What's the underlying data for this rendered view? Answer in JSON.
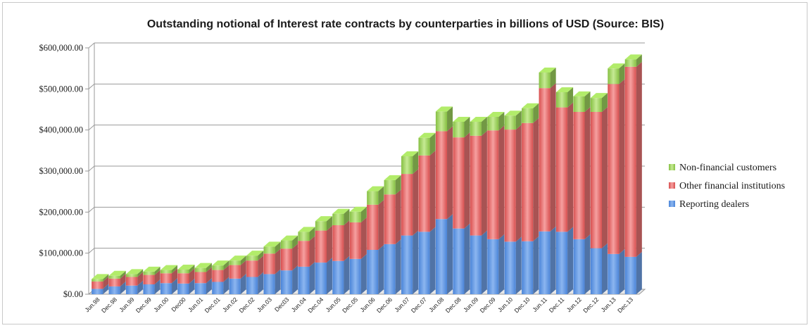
{
  "chart_data": {
    "type": "bar",
    "stacked": true,
    "three_d": true,
    "title": "Outstanding notional of Interest rate contracts by counterparties in billions of USD (Source: BIS)",
    "xlabel": "",
    "ylabel": "",
    "ylim": [
      0,
      600000
    ],
    "yticks": [
      0,
      100000,
      200000,
      300000,
      400000,
      500000,
      600000
    ],
    "ytick_labels": [
      "$0.00",
      "$100,000.00",
      "$200,000.00",
      "$300,000.00",
      "$400,000.00",
      "$500,000.00",
      "$600,000.00"
    ],
    "grid": true,
    "legend_position": "right",
    "categories": [
      "Jun.98",
      "Dec.98",
      "Jun.99",
      "Dec.99",
      "Jun.00",
      "Dec00",
      "Jun.01",
      "Dec.01",
      "Jun.02",
      "Dec.02",
      "Jun.03",
      "Dec03",
      "Jun.04",
      "Dec.04",
      "Jun.05",
      "Dec.05",
      "Jun.06",
      "Dec.06",
      "Jun.07",
      "Dec.07",
      "Jun.08",
      "Dec.08",
      "Jun.09",
      "Dec.09",
      "Jun.10",
      "Dec.10",
      "Jun.11",
      "Dec.11",
      "Jun.12",
      "Dec.12",
      "Jun.13",
      "Dec.13"
    ],
    "series": [
      {
        "name": "Reporting dealers",
        "color": "#6fa0e6",
        "values": [
          13000,
          19000,
          21000,
          24000,
          27000,
          26000,
          27000,
          30000,
          38000,
          42000,
          49000,
          58000,
          67000,
          77000,
          81000,
          86000,
          108000,
          122000,
          143000,
          152000,
          183000,
          160000,
          143000,
          134000,
          128000,
          129000,
          153000,
          152000,
          134000,
          112000,
          98000,
          91000
        ]
      },
      {
        "name": "Other financial institutions",
        "color": "#e97373",
        "values": [
          18000,
          19000,
          21000,
          23000,
          24000,
          25000,
          27000,
          29000,
          33000,
          40000,
          50000,
          53000,
          63000,
          78000,
          87000,
          89000,
          110000,
          121000,
          150000,
          186000,
          214000,
          222000,
          243000,
          265000,
          273000,
          288000,
          349000,
          303000,
          310000,
          332000,
          414000,
          463000
        ]
      },
      {
        "name": "Non-financial customers",
        "color": "#9fd35f",
        "values": [
          6000,
          7000,
          7000,
          8000,
          8000,
          9000,
          10000,
          11000,
          11000,
          12000,
          17000,
          20000,
          22000,
          23000,
          28000,
          26000,
          33000,
          35000,
          43000,
          43000,
          48000,
          38000,
          34000,
          33000,
          34000,
          36000,
          38000,
          37000,
          38000,
          34000,
          38000,
          18000
        ]
      }
    ]
  }
}
